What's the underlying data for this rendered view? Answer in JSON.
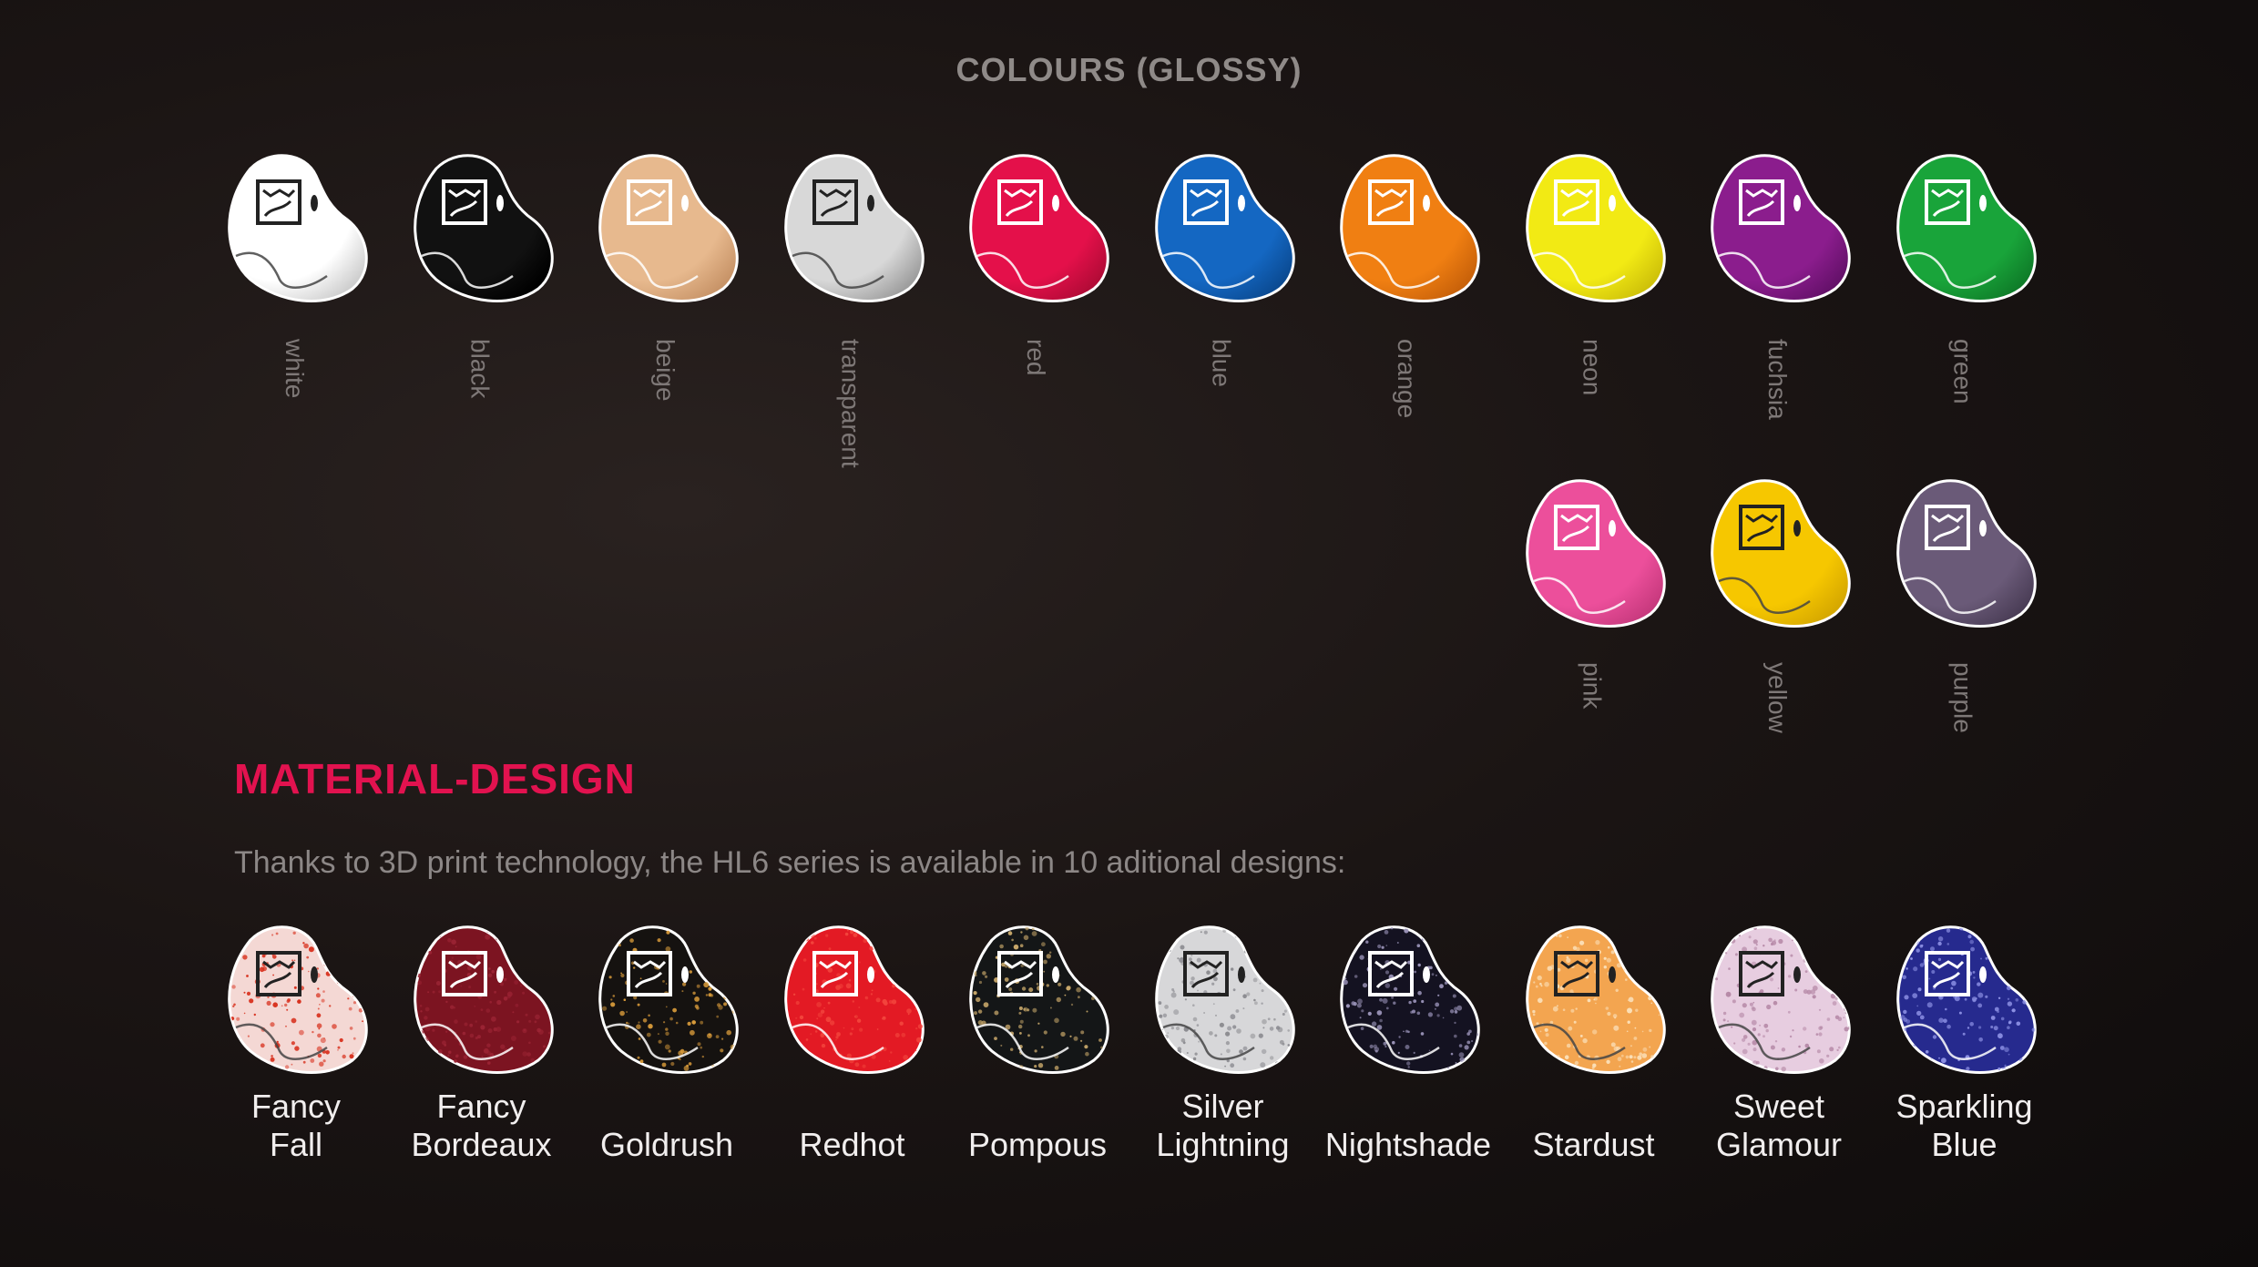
{
  "header": {
    "title": "COLOURS (GLOSSY)"
  },
  "colours": [
    {
      "name": "white",
      "color": "#ffffff",
      "shade": "#cfcfcf",
      "mark": "#222222"
    },
    {
      "name": "black",
      "color": "#111111",
      "shade": "#000000",
      "mark": "#ffffff"
    },
    {
      "name": "beige",
      "color": "#e7b98e",
      "shade": "#c89468",
      "mark": "#ffffff"
    },
    {
      "name": "transparent",
      "color": "#d8d8d8",
      "shade": "#9e9e9e",
      "mark": "#222222"
    },
    {
      "name": "red",
      "color": "#e4104a",
      "shade": "#b30b37",
      "mark": "#ffffff"
    },
    {
      "name": "blue",
      "color": "#1467c2",
      "shade": "#0b4b93",
      "mark": "#ffffff"
    },
    {
      "name": "orange",
      "color": "#f07f12",
      "shade": "#c9620a",
      "mark": "#ffffff"
    },
    {
      "name": "neon",
      "color": "#f2ea14",
      "shade": "#cfc20a",
      "mark": "#ffffff"
    },
    {
      "name": "fuchsia",
      "color": "#8b1d8d",
      "shade": "#65116a",
      "mark": "#ffffff"
    },
    {
      "name": "green",
      "color": "#19a43a",
      "shade": "#0f7d29",
      "mark": "#ffffff"
    },
    {
      "name": "pink",
      "color": "#ec4f9b",
      "shade": "#c83a7e",
      "mark": "#ffffff"
    },
    {
      "name": "yellow",
      "color": "#f6c700",
      "shade": "#d6a800",
      "mark": "#222222"
    },
    {
      "name": "purple",
      "color": "#6a5a78",
      "shade": "#4b3e57",
      "mark": "#ffffff"
    }
  ],
  "material": {
    "title": "MATERIAL-DESIGN",
    "subtitle": "Thanks to 3D print technology, the HL6 series is available in 10 aditional designs:"
  },
  "designs": [
    {
      "name": "Fancy Fall",
      "color": "#f4d8d4",
      "speck": "#d8321f",
      "mark": "#222222"
    },
    {
      "name": "Fancy Bordeaux",
      "color": "#7c1421",
      "speck": "#9b2434",
      "mark": "#ffffff"
    },
    {
      "name": "Goldrush",
      "color": "#151210",
      "speck": "#d79a3a",
      "mark": "#ffffff"
    },
    {
      "name": "Redhot",
      "color": "#e31a24",
      "speck": "#f2443c",
      "mark": "#ffffff"
    },
    {
      "name": "Pompous",
      "color": "#141617",
      "speck": "#c7a76a",
      "mark": "#ffffff"
    },
    {
      "name": "Silver Lightning",
      "color": "#d7d7d9",
      "speck": "#8b8b90",
      "mark": "#222222"
    },
    {
      "name": "Nightshade",
      "color": "#141221",
      "speck": "#9a93b8",
      "mark": "#ffffff"
    },
    {
      "name": "Stardust",
      "color": "#f3a550",
      "speck": "#fbe0b9",
      "mark": "#222222"
    },
    {
      "name": "Sweet Glamour",
      "color": "#e7cde0",
      "speck": "#b588a6",
      "mark": "#222222"
    },
    {
      "name": "Sparkling Blue",
      "color": "#262a8e",
      "speck": "#8f93e6",
      "mark": "#ffffff"
    }
  ]
}
